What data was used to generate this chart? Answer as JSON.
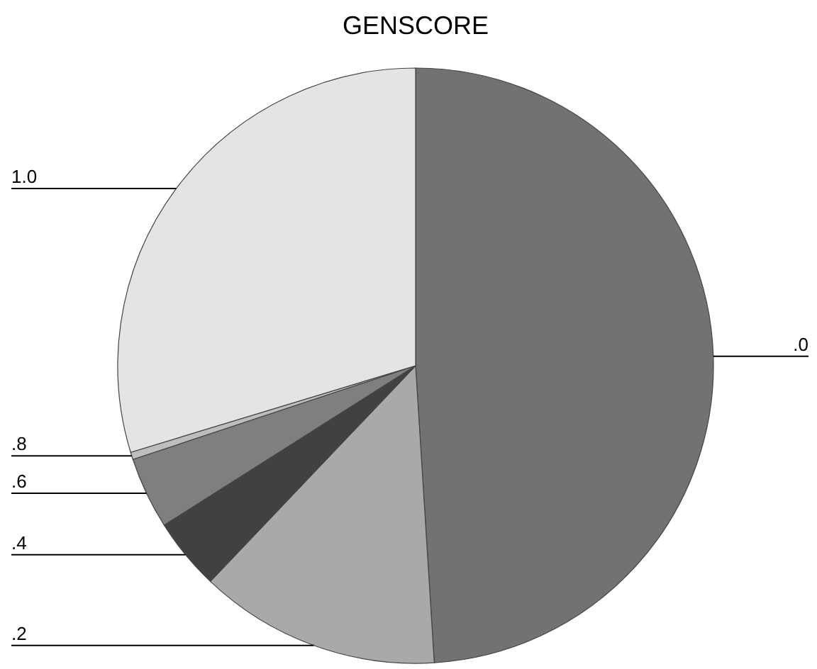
{
  "chart_data": {
    "type": "pie",
    "title": "GENSCORE",
    "categories": [
      ".0",
      ".2",
      ".4",
      ".6",
      ".8",
      "1.0"
    ],
    "values": [
      49.0,
      13.1,
      3.9,
      3.9,
      0.4,
      29.7
    ],
    "colors": [
      "#727272",
      "#a9a9a9",
      "#414141",
      "#7f7f7f",
      "#bdbdbd",
      "#e4e4e4"
    ]
  }
}
